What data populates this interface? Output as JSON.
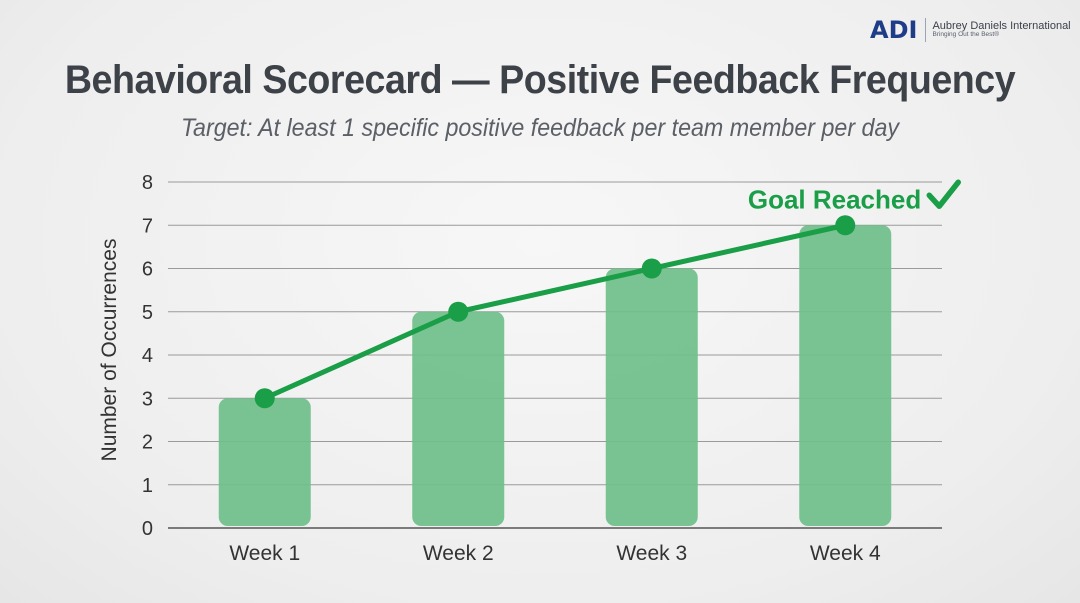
{
  "logo": {
    "mark": "ADI",
    "company": "Aubrey Daniels International",
    "tagline": "Bringing Out the Best®"
  },
  "chart_data": {
    "type": "bar",
    "title": "Behavioral Scorecard — Positive Feedback Frequency",
    "subtitle": "Target: At least 1 specific positive feedback per team member per day",
    "xlabel": "",
    "ylabel": "Number of Occurrences",
    "categories": [
      "Week 1",
      "Week 2",
      "Week 3",
      "Week 4"
    ],
    "values": [
      3,
      5,
      6,
      7
    ],
    "line_overlay": true,
    "ylim": [
      0,
      8
    ],
    "yticks": [
      0,
      1,
      2,
      3,
      4,
      5,
      6,
      7,
      8
    ],
    "grid": true,
    "annotation": {
      "text": "Goal Reached",
      "category": "Week 4",
      "icon": "checkmark-icon"
    },
    "colors": {
      "bar": "#6fbf8b",
      "line": "#1a9e47",
      "annotation": "#1a9e47"
    }
  }
}
